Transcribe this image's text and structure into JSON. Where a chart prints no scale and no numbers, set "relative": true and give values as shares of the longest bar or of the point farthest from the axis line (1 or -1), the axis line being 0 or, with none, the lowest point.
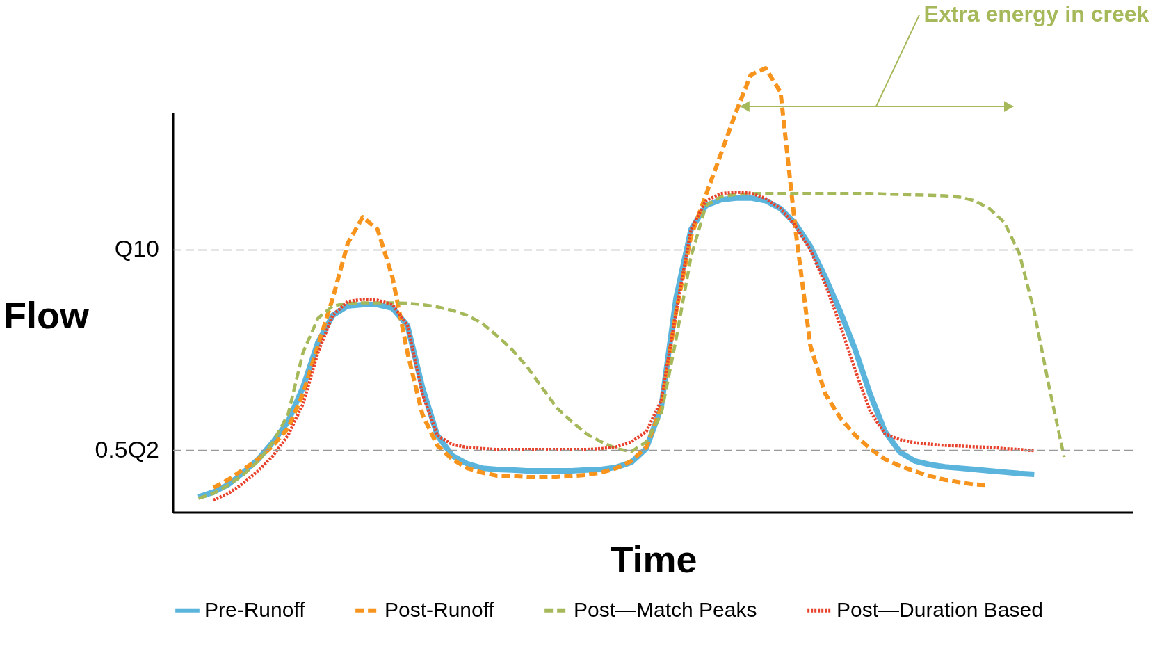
{
  "chart_data": {
    "type": "line",
    "relative": true,
    "xlabel": "Time",
    "ylabel": "Flow",
    "categories": [
      null,
      null,
      null,
      null,
      null,
      null,
      null,
      null,
      null,
      null,
      null,
      null,
      null,
      null,
      null,
      null,
      null,
      null,
      null,
      null,
      null,
      null,
      null,
      null,
      null,
      null,
      null,
      null,
      null,
      null,
      null,
      null,
      null,
      null,
      null,
      null,
      null,
      null,
      null,
      null,
      null,
      null,
      null,
      null,
      null,
      null,
      null,
      null,
      null,
      null,
      null,
      null,
      null,
      null,
      null,
      null,
      null,
      null,
      null,
      null
    ],
    "series": [
      {
        "name": "Pre-Runoff",
        "color": "#5ab4dc",
        "line_style": "solid",
        "values": [
          0.035,
          0.046,
          0.063,
          0.09,
          0.12,
          0.159,
          0.205,
          0.282,
          0.383,
          0.444,
          0.465,
          0.468,
          0.468,
          0.46,
          0.421,
          0.282,
          0.174,
          0.128,
          0.11,
          0.1,
          0.097,
          0.096,
          0.094,
          0.094,
          0.094,
          0.094,
          0.096,
          0.097,
          0.102,
          0.113,
          0.144,
          0.236,
          0.483,
          0.637,
          0.691,
          0.704,
          0.708,
          0.708,
          0.702,
          0.684,
          0.65,
          0.599,
          0.529,
          0.452,
          0.367,
          0.267,
          0.182,
          0.136,
          0.116,
          0.108,
          0.103,
          0.1,
          0.097,
          0.094,
          0.091,
          0.088,
          0.086,
          null,
          null,
          null
        ]
      },
      {
        "name": "Post-Runoff",
        "color": "#f7941d",
        "line_style": "dashed",
        "values": [
          null,
          0.056,
          0.074,
          0.097,
          0.12,
          0.151,
          0.19,
          0.267,
          0.375,
          0.483,
          0.606,
          0.665,
          0.637,
          0.529,
          0.36,
          0.221,
          0.151,
          0.12,
          0.1,
          0.09,
          0.083,
          0.082,
          0.08,
          0.08,
          0.08,
          0.082,
          0.085,
          0.09,
          0.1,
          0.116,
          0.147,
          0.236,
          0.452,
          0.622,
          0.715,
          0.807,
          0.9,
          0.985,
          1,
          0.946,
          0.637,
          0.375,
          0.267,
          0.213,
          0.174,
          0.144,
          0.12,
          0.105,
          0.093,
          0.082,
          0.074,
          0.068,
          0.063,
          0.062,
          null,
          null,
          null,
          null,
          null,
          null
        ]
      },
      {
        "name": "Post—Match Peaks",
        "color": "#a5b85a",
        "line_style": "dashed",
        "values": [
          0.032,
          0.043,
          0.062,
          0.085,
          0.116,
          0.159,
          0.221,
          0.36,
          0.437,
          0.465,
          0.471,
          0.472,
          0.472,
          0.472,
          0.471,
          0.468,
          0.463,
          0.455,
          0.444,
          0.426,
          0.398,
          0.367,
          0.329,
          0.282,
          0.236,
          0.205,
          0.177,
          0.159,
          0.144,
          0.137,
          0.159,
          0.221,
          0.39,
          0.576,
          0.691,
          0.711,
          0.716,
          0.718,
          0.718,
          0.718,
          0.718,
          0.718,
          0.718,
          0.718,
          0.718,
          0.718,
          0.717,
          0.716,
          0.715,
          0.714,
          0.713,
          0.71,
          0.702,
          0.684,
          0.653,
          0.583,
          0.452,
          0.282,
          0.125,
          null
        ]
      },
      {
        "name": "Post—Duration Based",
        "color": "#e8412c",
        "line_style": "dotted",
        "values": [
          null,
          0.028,
          0.043,
          0.066,
          0.094,
          0.128,
          0.174,
          0.244,
          0.36,
          0.444,
          0.475,
          0.48,
          0.478,
          0.468,
          0.421,
          0.267,
          0.174,
          0.153,
          0.147,
          0.144,
          0.142,
          0.142,
          0.142,
          0.142,
          0.142,
          0.142,
          0.142,
          0.144,
          0.148,
          0.159,
          0.182,
          0.252,
          0.452,
          0.637,
          0.702,
          0.718,
          0.721,
          0.719,
          0.707,
          0.684,
          0.645,
          0.591,
          0.514,
          0.421,
          0.321,
          0.228,
          0.177,
          0.164,
          0.157,
          0.154,
          0.151,
          0.15,
          0.148,
          0.147,
          0.144,
          0.142,
          0.139,
          null,
          null,
          null
        ]
      }
    ],
    "ref_lines": [
      {
        "axis": "y",
        "value": 0.591,
        "label": "Q10",
        "color": "#999999",
        "line_style": "dashed"
      },
      {
        "axis": "y",
        "value": 0.14,
        "label": "0.5Q2",
        "color": "#999999",
        "line_style": "dashed"
      }
    ],
    "annotations": [
      "Extra energy in creek"
    ],
    "legend": "bottom"
  }
}
